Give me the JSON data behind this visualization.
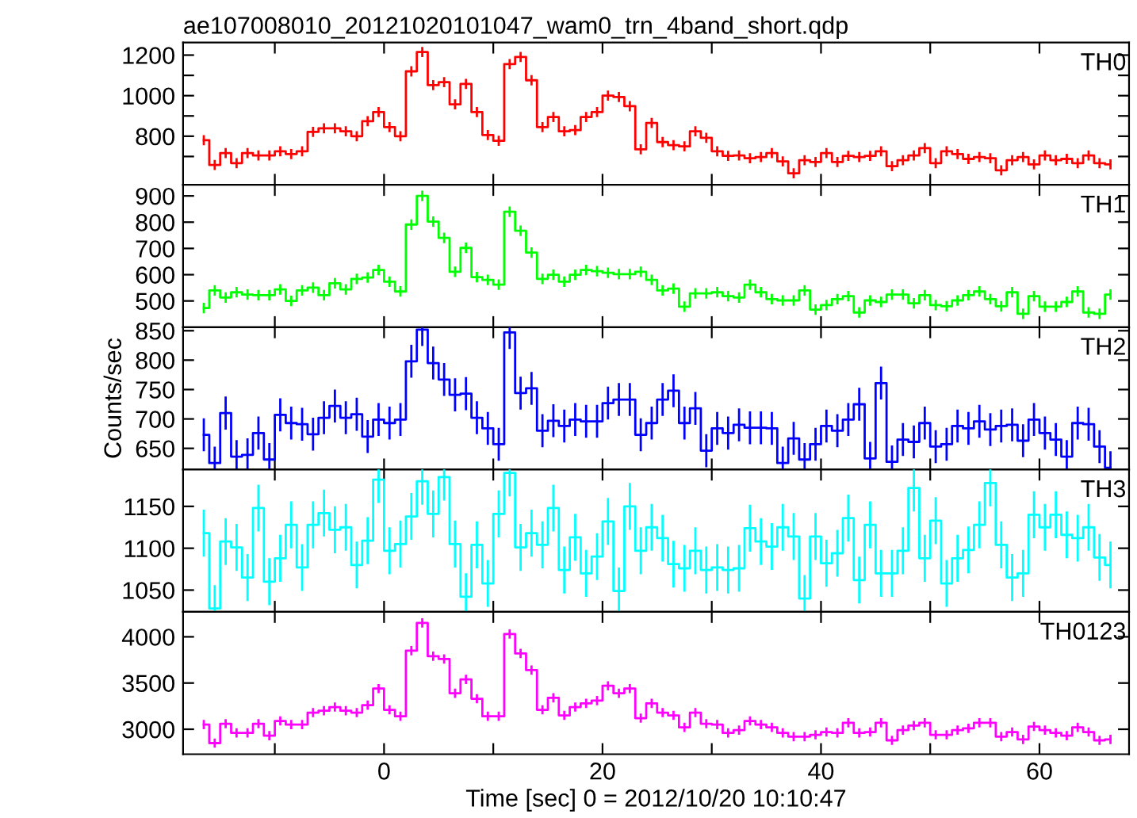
{
  "chart_data": [
    {
      "type": "step",
      "title": "ae107008010_20121020101047_wam0_trn_4band_short.qdp",
      "annotations": [
        "TH0"
      ],
      "tick_labels": "y",
      "xlim": [
        -18.4,
        68.2
      ],
      "xticks": [
        {
          "value": -10,
          "label": null
        },
        0,
        {
          "value": 10,
          "label": null
        },
        20,
        {
          "value": 30,
          "label": null
        },
        40,
        {
          "value": 50,
          "label": null
        },
        60
      ],
      "ylim": [
        560,
        1262
      ],
      "yticks": [
        {
          "value": 700,
          "label": null
        },
        800,
        {
          "value": 900,
          "label": null
        },
        1000,
        {
          "value": 1100,
          "label": null
        },
        1200
      ],
      "x": [
        -16.5,
        -15.5,
        -14.5,
        -13.5,
        -12.5,
        -11.5,
        -10.5,
        -9.5,
        -8.5,
        -7.5,
        -6.5,
        -5.5,
        -4.5,
        -3.5,
        -2.5,
        -1.5,
        -0.5,
        0.5,
        1.5,
        2.5,
        3.5,
        4.5,
        5.5,
        6.5,
        7.5,
        8.5,
        9.5,
        10.5,
        11.5,
        12.5,
        13.5,
        14.5,
        15.5,
        16.5,
        17.5,
        18.5,
        19.5,
        20.5,
        21.5,
        22.5,
        23.5,
        24.5,
        25.5,
        26.5,
        27.5,
        28.5,
        29.5,
        30.5,
        31.5,
        32.5,
        33.5,
        34.5,
        35.5,
        36.5,
        37.5,
        38.5,
        39.5,
        40.5,
        41.5,
        42.5,
        43.5,
        44.5,
        45.5,
        46.5,
        47.5,
        48.5,
        49.5,
        50.5,
        51.5,
        52.5,
        53.5,
        54.5,
        55.5,
        56.5,
        57.5,
        58.5,
        59.5,
        60.5,
        61.5,
        62.5,
        63.5,
        64.5,
        65.5,
        66.5
      ],
      "series": [
        {
          "color": "#ff0000",
          "values": [
            780,
            658,
            717,
            667,
            717,
            705,
            705,
            726,
            712,
            726,
            821,
            839,
            839,
            824,
            800,
            874,
            919,
            845,
            800,
            1120,
            1215,
            1052,
            1067,
            957,
            1058,
            919,
            806,
            777,
            1156,
            1191,
            1076,
            845,
            895,
            824,
            830,
            895,
            919,
            1000,
            993,
            948,
            735,
            865,
            771,
            756,
            750,
            824,
            792,
            726,
            703,
            705,
            691,
            697,
            717,
            676,
            617,
            682,
            673,
            717,
            673,
            703,
            697,
            703,
            726,
            652,
            682,
            705,
            741,
            667,
            726,
            712,
            688,
            697,
            691,
            632,
            682,
            697,
            661,
            705,
            682,
            688,
            667,
            705,
            667,
            661
          ],
          "errors": [
            25,
            25,
            25,
            25,
            25,
            25,
            25,
            25,
            25,
            25,
            25,
            25,
            25,
            25,
            25,
            25,
            25,
            25,
            25,
            25,
            25,
            25,
            25,
            25,
            25,
            25,
            25,
            25,
            25,
            25,
            25,
            25,
            25,
            25,
            25,
            25,
            25,
            25,
            25,
            25,
            25,
            25,
            25,
            25,
            25,
            25,
            25,
            25,
            25,
            25,
            25,
            25,
            25,
            25,
            25,
            25,
            25,
            25,
            25,
            25,
            25,
            25,
            25,
            25,
            25,
            25,
            25,
            25,
            25,
            25,
            25,
            25,
            25,
            25,
            25,
            25,
            25,
            25,
            25,
            25,
            25,
            25,
            25,
            25
          ]
        }
      ]
    },
    {
      "type": "step",
      "annotations": [
        "TH1"
      ],
      "tick_labels": "y",
      "xlim": [
        -18.4,
        68.2
      ],
      "xticks": [
        {
          "value": -10,
          "label": null
        },
        0,
        {
          "value": 10,
          "label": null
        },
        20,
        {
          "value": 30,
          "label": null
        },
        40,
        {
          "value": 50,
          "label": null
        },
        60
      ],
      "ylim": [
        400,
        942
      ],
      "yticks": [
        500,
        600,
        700,
        800,
        900
      ],
      "x": [
        -16.5,
        -15.5,
        -14.5,
        -13.5,
        -12.5,
        -11.5,
        -10.5,
        -9.5,
        -8.5,
        -7.5,
        -6.5,
        -5.5,
        -4.5,
        -3.5,
        -2.5,
        -1.5,
        -0.5,
        0.5,
        1.5,
        2.5,
        3.5,
        4.5,
        5.5,
        6.5,
        7.5,
        8.5,
        9.5,
        10.5,
        11.5,
        12.5,
        13.5,
        14.5,
        15.5,
        16.5,
        17.5,
        18.5,
        19.5,
        20.5,
        21.5,
        22.5,
        23.5,
        24.5,
        25.5,
        26.5,
        27.5,
        28.5,
        29.5,
        30.5,
        31.5,
        32.5,
        33.5,
        34.5,
        35.5,
        36.5,
        37.5,
        38.5,
        39.5,
        40.5,
        41.5,
        42.5,
        43.5,
        44.5,
        45.5,
        46.5,
        47.5,
        48.5,
        49.5,
        50.5,
        51.5,
        52.5,
        53.5,
        54.5,
        55.5,
        56.5,
        57.5,
        58.5,
        59.5,
        60.5,
        61.5,
        62.5,
        63.5,
        64.5,
        65.5,
        66.5
      ],
      "series": [
        {
          "color": "#00ff00",
          "values": [
            473,
            540,
            513,
            533,
            524,
            522,
            522,
            544,
            500,
            540,
            551,
            522,
            567,
            544,
            584,
            589,
            618,
            573,
            536,
            791,
            900,
            802,
            740,
            611,
            702,
            591,
            580,
            562,
            840,
            767,
            684,
            584,
            600,
            573,
            600,
            618,
            613,
            607,
            602,
            602,
            611,
            580,
            540,
            547,
            478,
            529,
            529,
            533,
            518,
            513,
            562,
            533,
            507,
            502,
            502,
            540,
            467,
            484,
            507,
            518,
            456,
            502,
            496,
            524,
            524,
            491,
            522,
            484,
            480,
            502,
            522,
            536,
            507,
            480,
            533,
            451,
            518,
            478,
            478,
            496,
            536,
            456,
            451,
            524
          ],
          "errors": [
            20,
            20,
            20,
            20,
            20,
            20,
            20,
            20,
            20,
            20,
            20,
            20,
            20,
            20,
            20,
            20,
            20,
            20,
            20,
            20,
            20,
            20,
            20,
            20,
            20,
            20,
            20,
            20,
            20,
            20,
            20,
            20,
            20,
            20,
            20,
            20,
            20,
            20,
            20,
            20,
            20,
            20,
            20,
            20,
            20,
            20,
            20,
            20,
            20,
            20,
            20,
            20,
            20,
            20,
            20,
            20,
            20,
            20,
            20,
            20,
            20,
            20,
            20,
            20,
            20,
            20,
            20,
            20,
            20,
            20,
            20,
            20,
            20,
            20,
            20,
            20,
            20,
            20,
            20,
            20,
            20,
            20,
            20,
            20
          ]
        }
      ]
    },
    {
      "type": "step",
      "annotations": [
        "TH2"
      ],
      "ylabel": "Counts/sec",
      "tick_labels": "y",
      "xlim": [
        -18.4,
        68.2
      ],
      "xticks": [
        {
          "value": -10,
          "label": null
        },
        0,
        {
          "value": 10,
          "label": null
        },
        20,
        {
          "value": 30,
          "label": null
        },
        40,
        {
          "value": 50,
          "label": null
        },
        60
      ],
      "ylim": [
        614,
        856
      ],
      "yticks": [
        650,
        700,
        750,
        800,
        850
      ],
      "x": [
        -16.5,
        -15.5,
        -14.5,
        -13.5,
        -12.5,
        -11.5,
        -10.5,
        -9.5,
        -8.5,
        -7.5,
        -6.5,
        -5.5,
        -4.5,
        -3.5,
        -2.5,
        -1.5,
        -0.5,
        0.5,
        1.5,
        2.5,
        3.5,
        4.5,
        5.5,
        6.5,
        7.5,
        8.5,
        9.5,
        10.5,
        11.5,
        12.5,
        13.5,
        14.5,
        15.5,
        16.5,
        17.5,
        18.5,
        19.5,
        20.5,
        21.5,
        22.5,
        23.5,
        24.5,
        25.5,
        26.5,
        27.5,
        28.5,
        29.5,
        30.5,
        31.5,
        32.5,
        33.5,
        34.5,
        35.5,
        36.5,
        37.5,
        38.5,
        39.5,
        40.5,
        41.5,
        42.5,
        43.5,
        44.5,
        45.5,
        46.5,
        47.5,
        48.5,
        49.5,
        50.5,
        51.5,
        52.5,
        53.5,
        54.5,
        55.5,
        56.5,
        57.5,
        58.5,
        59.5,
        60.5,
        61.5,
        62.5,
        63.5,
        64.5,
        65.5,
        66.5
      ],
      "series": [
        {
          "color": "#0000ff",
          "values": [
            673,
            625,
            710,
            636,
            639,
            676,
            631,
            707,
            693,
            691,
            674,
            702,
            722,
            702,
            708,
            670,
            699,
            693,
            699,
            798,
            852,
            795,
            767,
            741,
            743,
            702,
            684,
            657,
            847,
            744,
            752,
            680,
            697,
            688,
            699,
            696,
            696,
            727,
            733,
            733,
            673,
            693,
            733,
            748,
            693,
            718,
            646,
            684,
            676,
            690,
            685,
            685,
            684,
            625,
            667,
            631,
            657,
            688,
            680,
            699,
            725,
            633,
            761,
            627,
            665,
            661,
            693,
            653,
            657,
            688,
            684,
            696,
            682,
            688,
            690,
            663,
            699,
            676,
            665,
            636,
            693,
            691,
            653,
            617
          ],
          "errors": [
            28,
            28,
            28,
            28,
            28,
            28,
            28,
            28,
            28,
            28,
            28,
            28,
            28,
            28,
            28,
            28,
            28,
            28,
            28,
            28,
            28,
            28,
            28,
            28,
            28,
            28,
            28,
            28,
            28,
            28,
            28,
            28,
            28,
            28,
            28,
            28,
            28,
            28,
            28,
            28,
            28,
            28,
            28,
            28,
            28,
            28,
            28,
            28,
            28,
            28,
            28,
            28,
            28,
            28,
            28,
            28,
            28,
            28,
            28,
            28,
            28,
            28,
            28,
            28,
            28,
            28,
            28,
            28,
            28,
            28,
            28,
            28,
            28,
            28,
            28,
            28,
            28,
            28,
            28,
            28,
            28,
            28,
            28,
            28
          ]
        }
      ]
    },
    {
      "type": "step",
      "annotations": [
        "TH3"
      ],
      "tick_labels": "y",
      "xlim": [
        -18.4,
        68.2
      ],
      "xticks": [
        {
          "value": -10,
          "label": null
        },
        0,
        {
          "value": 10,
          "label": null
        },
        20,
        {
          "value": 30,
          "label": null
        },
        40,
        {
          "value": 50,
          "label": null
        },
        60
      ],
      "ylim": [
        1024,
        1194
      ],
      "yticks": [
        1050,
        1100,
        1150
      ],
      "x": [
        -16.5,
        -15.5,
        -14.5,
        -13.5,
        -12.5,
        -11.5,
        -10.5,
        -9.5,
        -8.5,
        -7.5,
        -6.5,
        -5.5,
        -4.5,
        -3.5,
        -2.5,
        -1.5,
        -0.5,
        0.5,
        1.5,
        2.5,
        3.5,
        4.5,
        5.5,
        6.5,
        7.5,
        8.5,
        9.5,
        10.5,
        11.5,
        12.5,
        13.5,
        14.5,
        15.5,
        16.5,
        17.5,
        18.5,
        19.5,
        20.5,
        21.5,
        22.5,
        23.5,
        24.5,
        25.5,
        26.5,
        27.5,
        28.5,
        29.5,
        30.5,
        31.5,
        32.5,
        33.5,
        34.5,
        35.5,
        36.5,
        37.5,
        38.5,
        39.5,
        40.5,
        41.5,
        42.5,
        43.5,
        44.5,
        45.5,
        46.5,
        47.5,
        48.5,
        49.5,
        50.5,
        51.5,
        52.5,
        53.5,
        54.5,
        55.5,
        56.5,
        57.5,
        58.5,
        59.5,
        60.5,
        61.5,
        62.5,
        63.5,
        64.5,
        65.5,
        66.5
      ],
      "series": [
        {
          "color": "#00ffff",
          "values": [
            1118,
            1028,
            1108,
            1101,
            1065,
            1148,
            1060,
            1088,
            1128,
            1077,
            1128,
            1142,
            1122,
            1125,
            1080,
            1109,
            1182,
            1097,
            1105,
            1138,
            1180,
            1141,
            1185,
            1105,
            1042,
            1104,
            1058,
            1141,
            1190,
            1101,
            1118,
            1104,
            1148,
            1074,
            1113,
            1070,
            1090,
            1132,
            1049,
            1150,
            1097,
            1125,
            1112,
            1081,
            1076,
            1097,
            1074,
            1077,
            1074,
            1076,
            1124,
            1108,
            1102,
            1125,
            1114,
            1040,
            1114,
            1082,
            1094,
            1136,
            1062,
            1128,
            1070,
            1070,
            1097,
            1172,
            1088,
            1133,
            1058,
            1088,
            1098,
            1128,
            1178,
            1104,
            1065,
            1070,
            1140,
            1125,
            1140,
            1116,
            1112,
            1125,
            1089,
            1080
          ],
          "errors": [
            28,
            28,
            28,
            28,
            28,
            28,
            28,
            28,
            28,
            28,
            28,
            28,
            28,
            28,
            28,
            28,
            28,
            28,
            28,
            28,
            28,
            28,
            28,
            28,
            28,
            28,
            28,
            28,
            28,
            28,
            28,
            28,
            28,
            28,
            28,
            28,
            28,
            28,
            28,
            28,
            28,
            28,
            28,
            28,
            28,
            28,
            28,
            28,
            28,
            28,
            28,
            28,
            28,
            28,
            28,
            28,
            28,
            28,
            28,
            28,
            28,
            28,
            28,
            28,
            28,
            28,
            28,
            28,
            28,
            28,
            28,
            28,
            28,
            28,
            28,
            28,
            28,
            28,
            28,
            28,
            28,
            28,
            28,
            28
          ]
        }
      ]
    },
    {
      "type": "step",
      "annotations": [
        "TH0123"
      ],
      "xlabel": "Time [sec] 0 = 2012/10/20 10:10:47",
      "xlim": [
        -18.4,
        68.2
      ],
      "xticks": [
        {
          "value": -10,
          "label": null
        },
        0,
        {
          "value": 10,
          "label": null
        },
        20,
        {
          "value": 30,
          "label": null
        },
        40,
        {
          "value": 50,
          "label": null
        },
        60
      ],
      "ylim": [
        2730,
        4270
      ],
      "yticks": [
        3000,
        3500,
        4000
      ],
      "x": [
        -16.5,
        -15.5,
        -14.5,
        -13.5,
        -12.5,
        -11.5,
        -10.5,
        -9.5,
        -8.5,
        -7.5,
        -6.5,
        -5.5,
        -4.5,
        -3.5,
        -2.5,
        -1.5,
        -0.5,
        0.5,
        1.5,
        2.5,
        3.5,
        4.5,
        5.5,
        6.5,
        7.5,
        8.5,
        9.5,
        10.5,
        11.5,
        12.5,
        13.5,
        14.5,
        15.5,
        16.5,
        17.5,
        18.5,
        19.5,
        20.5,
        21.5,
        22.5,
        23.5,
        24.5,
        25.5,
        26.5,
        27.5,
        28.5,
        29.5,
        30.5,
        31.5,
        32.5,
        33.5,
        34.5,
        35.5,
        36.5,
        37.5,
        38.5,
        39.5,
        40.5,
        41.5,
        42.5,
        43.5,
        44.5,
        45.5,
        46.5,
        47.5,
        48.5,
        49.5,
        50.5,
        51.5,
        52.5,
        53.5,
        54.5,
        55.5,
        56.5,
        57.5,
        58.5,
        59.5,
        60.5,
        61.5,
        62.5,
        63.5,
        64.5,
        65.5,
        66.5
      ],
      "series": [
        {
          "color": "#ff00ff",
          "values": [
            3050,
            2850,
            3060,
            2960,
            2960,
            3060,
            2930,
            3090,
            3050,
            3050,
            3180,
            3200,
            3240,
            3200,
            3180,
            3260,
            3440,
            3210,
            3140,
            3850,
            4150,
            3790,
            3760,
            3390,
            3540,
            3330,
            3140,
            3140,
            4030,
            3820,
            3640,
            3210,
            3340,
            3150,
            3240,
            3280,
            3310,
            3470,
            3390,
            3440,
            3120,
            3280,
            3180,
            3150,
            3020,
            3180,
            3060,
            3050,
            2960,
            2990,
            3090,
            3050,
            3020,
            2960,
            2920,
            2920,
            2940,
            2970,
            2960,
            3070,
            2960,
            2970,
            3070,
            2880,
            2990,
            3040,
            3070,
            2940,
            2940,
            2990,
            3010,
            3070,
            3070,
            2920,
            2970,
            2890,
            3030,
            2990,
            2960,
            2930,
            3020,
            2970,
            2880,
            2890
          ],
          "errors": [
            50,
            50,
            50,
            50,
            50,
            50,
            50,
            50,
            50,
            50,
            50,
            50,
            50,
            50,
            50,
            50,
            50,
            50,
            50,
            50,
            50,
            50,
            50,
            50,
            50,
            50,
            50,
            50,
            50,
            50,
            50,
            50,
            50,
            50,
            50,
            50,
            50,
            50,
            50,
            50,
            50,
            50,
            50,
            50,
            50,
            50,
            50,
            50,
            50,
            50,
            50,
            50,
            50,
            50,
            50,
            50,
            50,
            50,
            50,
            50,
            50,
            50,
            50,
            50,
            50,
            50,
            50,
            50,
            50,
            50,
            50,
            50,
            50,
            50,
            50,
            50,
            50,
            50,
            50,
            50,
            50,
            50,
            50,
            50
          ]
        }
      ]
    }
  ]
}
